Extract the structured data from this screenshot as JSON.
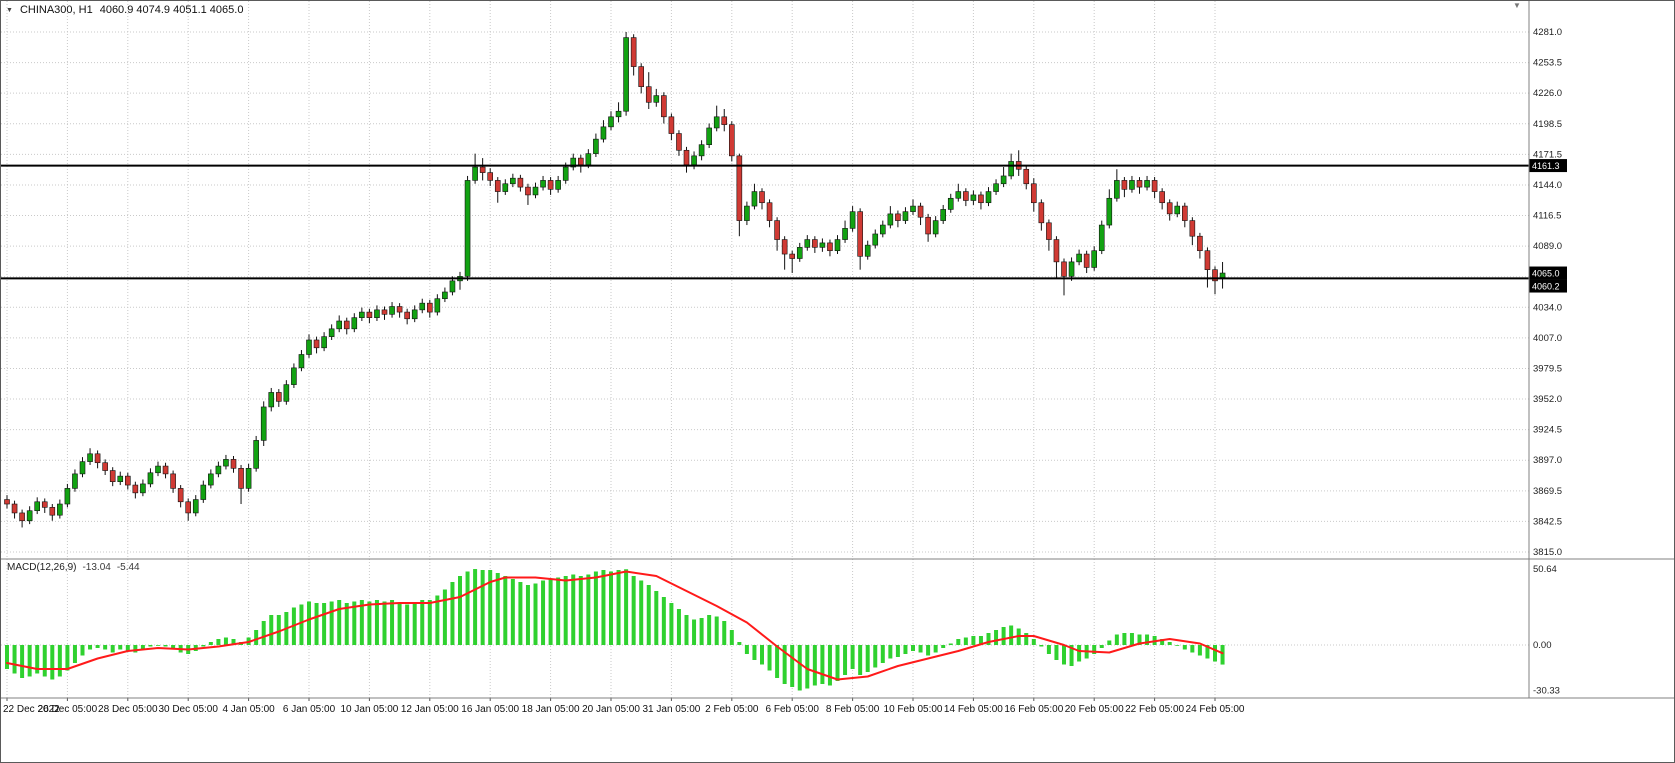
{
  "header": {
    "dropdown_icon": "▼",
    "symbol_period": "CHINA300, H1",
    "ohlc": "4060.9 4074.9 4051.1 4065.0"
  },
  "macd_label": {
    "name": "MACD(12,26,9)",
    "value_main": "-13.04",
    "value_signal": "-5.44"
  },
  "shift_marker_icon": "▼",
  "colors": {
    "grid": "#c9c9c9",
    "axis_text": "#222222",
    "candle_up": "#12a212",
    "candle_down": "#d03a34",
    "candle_outline": "#111111",
    "macd_histogram": "#2fd12f",
    "macd_signal": "#ff1a1a",
    "hline": "#000000",
    "tag_bg": "#000000",
    "tag_text": "#ffffff",
    "separator": "#808080"
  },
  "chart_data": {
    "type": "candlestick",
    "title": "CHINA300 H1 with MACD(12,26,9)",
    "price_axis_labels": [
      "4281.0",
      "4253.5",
      "4226.0",
      "4198.5",
      "4171.5",
      "4144.0",
      "4116.5",
      "4089.0",
      "4061.5",
      "4034.0",
      "4007.0",
      "3979.5",
      "3952.0",
      "3924.5",
      "3897.0",
      "3869.5",
      "3842.5",
      "3815.0"
    ],
    "price_axis_range": {
      "top": 4281.0,
      "bottom": 3815.0
    },
    "time_axis_labels": [
      {
        "label": "22 Dec 2022",
        "index": 0
      },
      {
        "label": "26 Dec 05:00",
        "index": 8
      },
      {
        "label": "28 Dec 05:00",
        "index": 16
      },
      {
        "label": "30 Dec 05:00",
        "index": 24
      },
      {
        "label": "4 Jan 05:00",
        "index": 32
      },
      {
        "label": "6 Jan 05:00",
        "index": 40
      },
      {
        "label": "10 Jan 05:00",
        "index": 48
      },
      {
        "label": "12 Jan 05:00",
        "index": 56
      },
      {
        "label": "16 Jan 05:00",
        "index": 64
      },
      {
        "label": "18 Jan 05:00",
        "index": 72
      },
      {
        "label": "20 Jan 05:00",
        "index": 80
      },
      {
        "label": "31 Jan 05:00",
        "index": 88
      },
      {
        "label": "2 Feb 05:00",
        "index": 96
      },
      {
        "label": "6 Feb 05:00",
        "index": 104
      },
      {
        "label": "8 Feb 05:00",
        "index": 112
      },
      {
        "label": "10 Feb 05:00",
        "index": 120
      },
      {
        "label": "14 Feb 05:00",
        "index": 128
      },
      {
        "label": "16 Feb 05:00",
        "index": 136
      },
      {
        "label": "20 Feb 05:00",
        "index": 144
      },
      {
        "label": "22 Feb 05:00",
        "index": 152
      },
      {
        "label": "24 Feb 05:00",
        "index": 160
      }
    ],
    "hlines": [
      {
        "price": 4161.3,
        "label": "4161.3"
      },
      {
        "price": 4060.2,
        "label": "4060.2"
      }
    ],
    "bid_tag": {
      "price": 4065.0,
      "label": "4065.0"
    },
    "candles": [
      [
        3862,
        3866,
        3854,
        3858
      ],
      [
        3858,
        3861,
        3845,
        3850
      ],
      [
        3850,
        3853,
        3837,
        3843
      ],
      [
        3843,
        3856,
        3840,
        3852
      ],
      [
        3852,
        3864,
        3849,
        3860
      ],
      [
        3860,
        3863,
        3850,
        3855
      ],
      [
        3855,
        3858,
        3843,
        3848
      ],
      [
        3848,
        3862,
        3845,
        3858
      ],
      [
        3858,
        3876,
        3855,
        3872
      ],
      [
        3872,
        3889,
        3869,
        3885
      ],
      [
        3885,
        3900,
        3882,
        3896
      ],
      [
        3896,
        3908,
        3893,
        3903
      ],
      [
        3903,
        3906,
        3890,
        3895
      ],
      [
        3895,
        3898,
        3884,
        3888
      ],
      [
        3888,
        3891,
        3874,
        3878
      ],
      [
        3878,
        3887,
        3875,
        3883
      ],
      [
        3883,
        3886,
        3871,
        3875
      ],
      [
        3875,
        3878,
        3863,
        3868
      ],
      [
        3868,
        3880,
        3865,
        3876
      ],
      [
        3876,
        3890,
        3873,
        3886
      ],
      [
        3886,
        3896,
        3883,
        3892
      ],
      [
        3892,
        3895,
        3881,
        3885
      ],
      [
        3885,
        3888,
        3868,
        3872
      ],
      [
        3872,
        3875,
        3855,
        3860
      ],
      [
        3860,
        3863,
        3843,
        3850
      ],
      [
        3850,
        3866,
        3847,
        3862
      ],
      [
        3862,
        3879,
        3859,
        3875
      ],
      [
        3875,
        3889,
        3872,
        3885
      ],
      [
        3885,
        3896,
        3882,
        3892
      ],
      [
        3892,
        3902,
        3889,
        3898
      ],
      [
        3898,
        3901,
        3886,
        3890
      ],
      [
        3890,
        3893,
        3858,
        3872
      ],
      [
        3872,
        3894,
        3869,
        3890
      ],
      [
        3890,
        3919,
        3887,
        3915
      ],
      [
        3915,
        3950,
        3910,
        3945
      ],
      [
        3945,
        3962,
        3941,
        3958
      ],
      [
        3958,
        3961,
        3945,
        3950
      ],
      [
        3950,
        3969,
        3947,
        3965
      ],
      [
        3965,
        3984,
        3962,
        3980
      ],
      [
        3980,
        3996,
        3977,
        3992
      ],
      [
        3992,
        4010,
        3989,
        4005
      ],
      [
        4005,
        4008,
        3993,
        3998
      ],
      [
        3998,
        4012,
        3995,
        4008
      ],
      [
        4008,
        4019,
        4005,
        4015
      ],
      [
        4015,
        4027,
        4012,
        4022
      ],
      [
        4022,
        4025,
        4010,
        4015
      ],
      [
        4015,
        4029,
        4012,
        4025
      ],
      [
        4025,
        4034,
        4022,
        4030
      ],
      [
        4030,
        4033,
        4020,
        4025
      ],
      [
        4025,
        4036,
        4022,
        4032
      ],
      [
        4032,
        4035,
        4023,
        4028
      ],
      [
        4028,
        4039,
        4025,
        4035
      ],
      [
        4035,
        4038,
        4025,
        4030
      ],
      [
        4030,
        4033,
        4019,
        4024
      ],
      [
        4024,
        4036,
        4021,
        4032
      ],
      [
        4032,
        4042,
        4029,
        4038
      ],
      [
        4038,
        4041,
        4025,
        4030
      ],
      [
        4030,
        4046,
        4027,
        4042
      ],
      [
        4042,
        4052,
        4039,
        4048
      ],
      [
        4048,
        4062,
        4045,
        4058
      ],
      [
        4058,
        4066,
        4050,
        4062
      ],
      [
        4062,
        4152,
        4058,
        4148
      ],
      [
        4148,
        4172,
        4145,
        4160
      ],
      [
        4160,
        4168,
        4148,
        4155
      ],
      [
        4155,
        4159,
        4143,
        4148
      ],
      [
        4148,
        4151,
        4128,
        4138
      ],
      [
        4138,
        4149,
        4135,
        4145
      ],
      [
        4145,
        4154,
        4142,
        4150
      ],
      [
        4150,
        4153,
        4138,
        4142
      ],
      [
        4142,
        4145,
        4126,
        4135
      ],
      [
        4135,
        4146,
        4132,
        4142
      ],
      [
        4142,
        4152,
        4139,
        4148
      ],
      [
        4148,
        4151,
        4135,
        4140
      ],
      [
        4140,
        4152,
        4137,
        4148
      ],
      [
        4148,
        4164,
        4145,
        4160
      ],
      [
        4160,
        4172,
        4157,
        4168
      ],
      [
        4168,
        4171,
        4155,
        4162
      ],
      [
        4162,
        4176,
        4159,
        4172
      ],
      [
        4172,
        4190,
        4169,
        4185
      ],
      [
        4185,
        4202,
        4182,
        4196
      ],
      [
        4196,
        4210,
        4193,
        4205
      ],
      [
        4205,
        4218,
        4200,
        4210
      ],
      [
        4210,
        4281,
        4206,
        4276
      ],
      [
        4276,
        4279,
        4242,
        4250
      ],
      [
        4250,
        4253,
        4226,
        4232
      ],
      [
        4232,
        4245,
        4212,
        4218
      ],
      [
        4218,
        4230,
        4214,
        4224
      ],
      [
        4224,
        4227,
        4199,
        4205
      ],
      [
        4205,
        4208,
        4184,
        4190
      ],
      [
        4190,
        4193,
        4170,
        4175
      ],
      [
        4175,
        4178,
        4155,
        4162
      ],
      [
        4162,
        4174,
        4158,
        4170
      ],
      [
        4170,
        4184,
        4166,
        4180
      ],
      [
        4180,
        4199,
        4177,
        4195
      ],
      [
        4195,
        4215,
        4192,
        4205
      ],
      [
        4205,
        4212,
        4192,
        4198
      ],
      [
        4198,
        4201,
        4165,
        4170
      ],
      [
        4170,
        4172,
        4098,
        4112
      ],
      [
        4112,
        4129,
        4108,
        4125
      ],
      [
        4125,
        4145,
        4122,
        4138
      ],
      [
        4138,
        4141,
        4122,
        4128
      ],
      [
        4128,
        4131,
        4106,
        4112
      ],
      [
        4112,
        4115,
        4085,
        4095
      ],
      [
        4095,
        4098,
        4068,
        4082
      ],
      [
        4082,
        4085,
        4065,
        4078
      ],
      [
        4078,
        4092,
        4075,
        4088
      ],
      [
        4088,
        4099,
        4085,
        4095
      ],
      [
        4095,
        4098,
        4083,
        4088
      ],
      [
        4088,
        4096,
        4084,
        4092
      ],
      [
        4092,
        4095,
        4080,
        4085
      ],
      [
        4085,
        4099,
        4082,
        4095
      ],
      [
        4095,
        4112,
        4092,
        4105
      ],
      [
        4105,
        4125,
        4102,
        4120
      ],
      [
        4120,
        4123,
        4068,
        4080
      ],
      [
        4080,
        4094,
        4077,
        4090
      ],
      [
        4090,
        4104,
        4087,
        4100
      ],
      [
        4100,
        4112,
        4097,
        4108
      ],
      [
        4108,
        4125,
        4105,
        4118
      ],
      [
        4118,
        4121,
        4106,
        4112
      ],
      [
        4112,
        4124,
        4109,
        4120
      ],
      [
        4120,
        4131,
        4117,
        4125
      ],
      [
        4125,
        4128,
        4108,
        4115
      ],
      [
        4115,
        4118,
        4093,
        4100
      ],
      [
        4100,
        4116,
        4097,
        4112
      ],
      [
        4112,
        4126,
        4109,
        4122
      ],
      [
        4122,
        4136,
        4119,
        4132
      ],
      [
        4132,
        4145,
        4129,
        4138
      ],
      [
        4138,
        4141,
        4125,
        4130
      ],
      [
        4130,
        4139,
        4126,
        4135
      ],
      [
        4135,
        4138,
        4122,
        4128
      ],
      [
        4128,
        4142,
        4125,
        4138
      ],
      [
        4138,
        4149,
        4135,
        4145
      ],
      [
        4145,
        4160,
        4142,
        4152
      ],
      [
        4152,
        4172,
        4149,
        4165
      ],
      [
        4165,
        4175,
        4152,
        4158
      ],
      [
        4158,
        4161,
        4140,
        4145
      ],
      [
        4145,
        4150,
        4120,
        4128
      ],
      [
        4128,
        4131,
        4103,
        4110
      ],
      [
        4110,
        4113,
        4085,
        4095
      ],
      [
        4095,
        4098,
        4060,
        4075
      ],
      [
        4075,
        4078,
        4045,
        4062
      ],
      [
        4062,
        4079,
        4058,
        4075
      ],
      [
        4075,
        4086,
        4072,
        4082
      ],
      [
        4082,
        4085,
        4065,
        4070
      ],
      [
        4070,
        4089,
        4067,
        4085
      ],
      [
        4085,
        4112,
        4082,
        4108
      ],
      [
        4108,
        4140,
        4105,
        4132
      ],
      [
        4132,
        4158,
        4129,
        4148
      ],
      [
        4148,
        4151,
        4133,
        4140
      ],
      [
        4140,
        4152,
        4137,
        4148
      ],
      [
        4148,
        4151,
        4136,
        4142
      ],
      [
        4142,
        4152,
        4139,
        4148
      ],
      [
        4148,
        4151,
        4132,
        4138
      ],
      [
        4138,
        4141,
        4122,
        4128
      ],
      [
        4128,
        4131,
        4112,
        4118
      ],
      [
        4118,
        4129,
        4115,
        4125
      ],
      [
        4125,
        4128,
        4106,
        4112
      ],
      [
        4112,
        4115,
        4090,
        4098
      ],
      [
        4098,
        4101,
        4078,
        4085
      ],
      [
        4085,
        4088,
        4052,
        4068
      ],
      [
        4068,
        4071,
        4046,
        4058
      ],
      [
        4060.9,
        4074.9,
        4051.1,
        4065.0
      ]
    ],
    "macd": {
      "axis_labels": [
        "50.64",
        "0.00",
        "-30.33"
      ],
      "axis_max": 50.64,
      "axis_min": -30.33,
      "histogram": [
        -16,
        -19,
        -22,
        -21,
        -19,
        -21,
        -23,
        -21,
        -17,
        -12,
        -7,
        -3,
        -2,
        -3,
        -5,
        -3,
        -4,
        -5,
        -3,
        -1,
        0,
        -1,
        -3,
        -5,
        -6,
        -4,
        -1,
        2,
        4,
        5,
        4,
        2,
        5,
        10,
        16,
        20,
        20,
        22,
        25,
        27,
        29,
        28,
        28,
        29,
        30,
        28,
        29,
        30,
        29,
        30,
        29,
        30,
        28,
        27,
        28,
        30,
        30,
        33,
        37,
        42,
        46,
        49,
        50.64,
        50,
        50,
        48,
        46,
        44,
        42,
        40,
        41,
        43,
        44,
        45,
        46,
        47,
        46,
        47,
        49,
        50,
        49,
        50,
        50.5,
        46,
        43,
        40,
        36,
        32,
        28,
        24,
        20,
        17,
        18,
        20,
        19,
        16,
        10,
        2,
        -6,
        -10,
        -13,
        -17,
        -22,
        -26,
        -28,
        -30.33,
        -29,
        -27,
        -26,
        -27,
        -24,
        -20,
        -16,
        -20,
        -18,
        -15,
        -12,
        -9,
        -8,
        -6,
        -4,
        -5,
        -7,
        -5,
        -2,
        1,
        4,
        5,
        6,
        6,
        8,
        10,
        12,
        13,
        11,
        8,
        4,
        -1,
        -6,
        -10,
        -13,
        -14,
        -11,
        -9,
        -6,
        -2,
        3,
        7,
        8,
        8,
        7,
        7,
        6,
        4,
        2,
        0,
        -3,
        -5,
        -7,
        -9,
        -11,
        -13.04
      ],
      "signal_keypoints": [
        [
          0,
          -12
        ],
        [
          4,
          -16
        ],
        [
          8,
          -16
        ],
        [
          12,
          -9
        ],
        [
          16,
          -4
        ],
        [
          20,
          -2
        ],
        [
          24,
          -3
        ],
        [
          28,
          -1
        ],
        [
          32,
          2
        ],
        [
          36,
          9
        ],
        [
          40,
          17
        ],
        [
          44,
          24
        ],
        [
          48,
          27
        ],
        [
          52,
          28
        ],
        [
          56,
          28
        ],
        [
          60,
          32
        ],
        [
          64,
          42
        ],
        [
          66,
          45
        ],
        [
          70,
          45
        ],
        [
          74,
          43
        ],
        [
          78,
          45
        ],
        [
          82,
          49
        ],
        [
          86,
          46
        ],
        [
          90,
          36
        ],
        [
          94,
          26
        ],
        [
          98,
          15
        ],
        [
          102,
          -1
        ],
        [
          106,
          -16
        ],
        [
          110,
          -23
        ],
        [
          114,
          -21
        ],
        [
          118,
          -14
        ],
        [
          122,
          -9
        ],
        [
          126,
          -4
        ],
        [
          130,
          2
        ],
        [
          134,
          6
        ],
        [
          136,
          6
        ],
        [
          140,
          0
        ],
        [
          142,
          -4
        ],
        [
          146,
          -5
        ],
        [
          150,
          1
        ],
        [
          154,
          4
        ],
        [
          158,
          1
        ],
        [
          161,
          -5.44
        ]
      ]
    }
  }
}
